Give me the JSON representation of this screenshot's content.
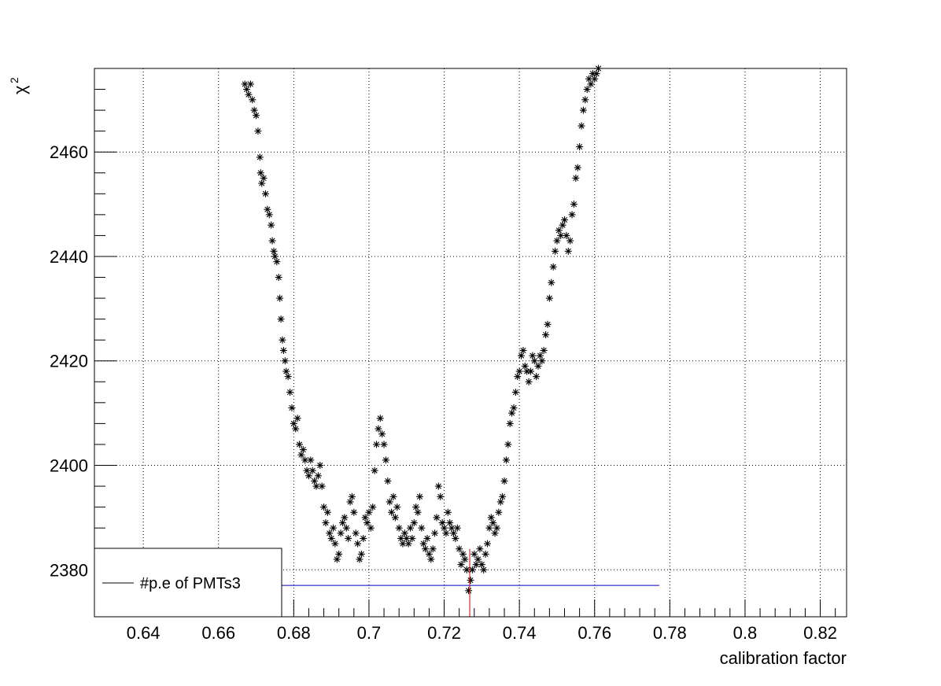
{
  "chart_data": {
    "type": "scatter",
    "title": "",
    "xlabel": "calibration factor",
    "ylabel": "χ",
    "ylabel_sup": "2",
    "xlim": [
      0.627,
      0.827
    ],
    "ylim": [
      2371,
      2476
    ],
    "xticks_major": [
      0.64,
      0.66,
      0.68,
      0.7,
      0.72,
      0.74,
      0.76,
      0.78,
      0.8,
      0.82
    ],
    "xtick_labels": [
      "0.64",
      "0.66",
      "0.68",
      "0.7",
      "0.72",
      "0.74",
      "0.76",
      "0.78",
      "0.8",
      "0.82"
    ],
    "yticks_major": [
      2380,
      2400,
      2420,
      2440,
      2460
    ],
    "ytick_labels": [
      "2380",
      "2400",
      "2420",
      "2440",
      "2460"
    ],
    "grid": true,
    "legend": {
      "placement": "bottom-left",
      "entries": [
        {
          "label": "#p.e of PMTs3",
          "color": "#000000"
        }
      ]
    },
    "marker_color": "#000000",
    "minimum_line": {
      "x": 0.7268,
      "color": "#cc0000"
    },
    "horizontal_line": {
      "y": 2377,
      "x_start": 0.627,
      "x_end": 0.7772,
      "color": "#0000cc"
    },
    "series": [
      {
        "marker": "asterisk",
        "points": [
          [
            0.667,
            2473
          ],
          [
            0.6675,
            2472
          ],
          [
            0.668,
            2471
          ],
          [
            0.6685,
            2473
          ],
          [
            0.669,
            2470
          ],
          [
            0.6695,
            2468
          ],
          [
            0.67,
            2467
          ],
          [
            0.6705,
            2464
          ],
          [
            0.671,
            2459
          ],
          [
            0.6712,
            2456
          ],
          [
            0.6715,
            2454
          ],
          [
            0.672,
            2455
          ],
          [
            0.6725,
            2452
          ],
          [
            0.673,
            2449
          ],
          [
            0.6735,
            2448
          ],
          [
            0.674,
            2446
          ],
          [
            0.6743,
            2443
          ],
          [
            0.6747,
            2441
          ],
          [
            0.675,
            2440
          ],
          [
            0.6755,
            2439
          ],
          [
            0.676,
            2436
          ],
          [
            0.6763,
            2432
          ],
          [
            0.6766,
            2428
          ],
          [
            0.677,
            2424
          ],
          [
            0.6773,
            2422
          ],
          [
            0.6777,
            2420
          ],
          [
            0.678,
            2418
          ],
          [
            0.6785,
            2417
          ],
          [
            0.679,
            2414
          ],
          [
            0.6795,
            2411
          ],
          [
            0.68,
            2408
          ],
          [
            0.6805,
            2407
          ],
          [
            0.681,
            2409
          ],
          [
            0.6815,
            2404
          ],
          [
            0.682,
            2402
          ],
          [
            0.6825,
            2403
          ],
          [
            0.683,
            2401
          ],
          [
            0.6835,
            2399
          ],
          [
            0.684,
            2398
          ],
          [
            0.6845,
            2401
          ],
          [
            0.685,
            2399
          ],
          [
            0.6855,
            2397
          ],
          [
            0.686,
            2396
          ],
          [
            0.6865,
            2398
          ],
          [
            0.687,
            2400
          ],
          [
            0.6875,
            2396
          ],
          [
            0.688,
            2392
          ],
          [
            0.6885,
            2389
          ],
          [
            0.689,
            2391
          ],
          [
            0.6895,
            2387
          ],
          [
            0.69,
            2386
          ],
          [
            0.6905,
            2388
          ],
          [
            0.691,
            2385
          ],
          [
            0.6915,
            2382
          ],
          [
            0.692,
            2383
          ],
          [
            0.6925,
            2387
          ],
          [
            0.693,
            2389
          ],
          [
            0.6935,
            2390
          ],
          [
            0.694,
            2388
          ],
          [
            0.6945,
            2386
          ],
          [
            0.695,
            2393
          ],
          [
            0.6955,
            2394
          ],
          [
            0.696,
            2391
          ],
          [
            0.6965,
            2387
          ],
          [
            0.697,
            2385
          ],
          [
            0.6975,
            2382
          ],
          [
            0.698,
            2383
          ],
          [
            0.6985,
            2386
          ],
          [
            0.699,
            2390
          ],
          [
            0.6995,
            2389
          ],
          [
            0.7,
            2391
          ],
          [
            0.7005,
            2388
          ],
          [
            0.701,
            2392
          ],
          [
            0.7015,
            2399
          ],
          [
            0.702,
            2404
          ],
          [
            0.7025,
            2407
          ],
          [
            0.703,
            2409
          ],
          [
            0.7035,
            2406
          ],
          [
            0.704,
            2404
          ],
          [
            0.7045,
            2401
          ],
          [
            0.705,
            2397
          ],
          [
            0.7055,
            2393
          ],
          [
            0.706,
            2391
          ],
          [
            0.7065,
            2394
          ],
          [
            0.707,
            2390
          ],
          [
            0.7075,
            2392
          ],
          [
            0.708,
            2388
          ],
          [
            0.7085,
            2386
          ],
          [
            0.709,
            2385
          ],
          [
            0.7095,
            2387
          ],
          [
            0.71,
            2386
          ],
          [
            0.7105,
            2385
          ],
          [
            0.711,
            2388
          ],
          [
            0.7115,
            2386
          ],
          [
            0.712,
            2389
          ],
          [
            0.7125,
            2392
          ],
          [
            0.713,
            2391
          ],
          [
            0.7135,
            2394
          ],
          [
            0.714,
            2388
          ],
          [
            0.7145,
            2385
          ],
          [
            0.715,
            2384
          ],
          [
            0.7155,
            2386
          ],
          [
            0.716,
            2383
          ],
          [
            0.7165,
            2382
          ],
          [
            0.717,
            2384
          ],
          [
            0.7175,
            2387
          ],
          [
            0.718,
            2390
          ],
          [
            0.7185,
            2396
          ],
          [
            0.719,
            2394
          ],
          [
            0.7195,
            2389
          ],
          [
            0.72,
            2388
          ],
          [
            0.7205,
            2387
          ],
          [
            0.721,
            2391
          ],
          [
            0.7215,
            2389
          ],
          [
            0.722,
            2388
          ],
          [
            0.7225,
            2387
          ],
          [
            0.723,
            2386
          ],
          [
            0.7235,
            2388
          ],
          [
            0.724,
            2384
          ],
          [
            0.7245,
            2381
          ],
          [
            0.725,
            2383
          ],
          [
            0.7255,
            2382
          ],
          [
            0.726,
            2380
          ],
          [
            0.7265,
            2376
          ],
          [
            0.727,
            2378
          ],
          [
            0.7275,
            2380
          ],
          [
            0.728,
            2383
          ],
          [
            0.7285,
            2381
          ],
          [
            0.729,
            2382
          ],
          [
            0.7295,
            2384
          ],
          [
            0.73,
            2381
          ],
          [
            0.7305,
            2380
          ],
          [
            0.731,
            2383
          ],
          [
            0.7315,
            2385
          ],
          [
            0.732,
            2388
          ],
          [
            0.7325,
            2390
          ],
          [
            0.733,
            2389
          ],
          [
            0.7335,
            2387
          ],
          [
            0.734,
            2388
          ],
          [
            0.7345,
            2391
          ],
          [
            0.735,
            2393
          ],
          [
            0.7355,
            2394
          ],
          [
            0.736,
            2397
          ],
          [
            0.7365,
            2401
          ],
          [
            0.737,
            2404
          ],
          [
            0.7375,
            2408
          ],
          [
            0.738,
            2410
          ],
          [
            0.7385,
            2411
          ],
          [
            0.739,
            2414
          ],
          [
            0.7395,
            2417
          ],
          [
            0.74,
            2418
          ],
          [
            0.7405,
            2421
          ],
          [
            0.741,
            2422
          ],
          [
            0.7415,
            2419
          ],
          [
            0.742,
            2418
          ],
          [
            0.7425,
            2416
          ],
          [
            0.743,
            2418
          ],
          [
            0.7435,
            2421
          ],
          [
            0.744,
            2420
          ],
          [
            0.7445,
            2417
          ],
          [
            0.745,
            2419
          ],
          [
            0.7455,
            2421
          ],
          [
            0.746,
            2420
          ],
          [
            0.7465,
            2422
          ],
          [
            0.747,
            2425
          ],
          [
            0.7475,
            2427
          ],
          [
            0.748,
            2432
          ],
          [
            0.7485,
            2435
          ],
          [
            0.749,
            2438
          ],
          [
            0.7495,
            2441
          ],
          [
            0.75,
            2443
          ],
          [
            0.7505,
            2445
          ],
          [
            0.751,
            2444
          ],
          [
            0.7515,
            2446
          ],
          [
            0.752,
            2447
          ],
          [
            0.7525,
            2444
          ],
          [
            0.753,
            2441
          ],
          [
            0.7535,
            2443
          ],
          [
            0.754,
            2448
          ],
          [
            0.7545,
            2450
          ],
          [
            0.755,
            2455
          ],
          [
            0.7555,
            2457
          ],
          [
            0.756,
            2461
          ],
          [
            0.7565,
            2465
          ],
          [
            0.757,
            2468
          ],
          [
            0.7575,
            2470
          ],
          [
            0.758,
            2472
          ],
          [
            0.7585,
            2474
          ],
          [
            0.759,
            2473
          ],
          [
            0.7595,
            2475
          ],
          [
            0.76,
            2474
          ],
          [
            0.7605,
            2475
          ],
          [
            0.761,
            2476
          ]
        ]
      }
    ]
  }
}
